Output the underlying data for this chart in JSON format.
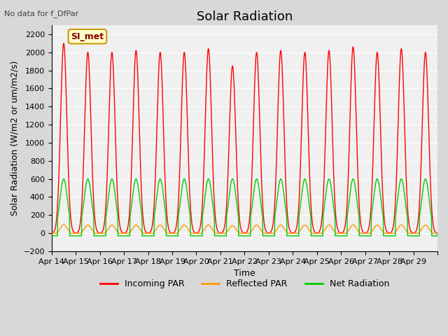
{
  "title": "Solar Radiation",
  "subtitle": "No data for f_DfPar",
  "ylabel": "Solar Radiation (W/m2 or um/m2/s)",
  "xlabel": "Time",
  "ylim": [
    -200,
    2300
  ],
  "yticks": [
    -200,
    0,
    200,
    400,
    600,
    800,
    1000,
    1200,
    1400,
    1600,
    1800,
    2000,
    2200
  ],
  "xtick_labels": [
    "Apr 14",
    "Apr 15",
    "Apr 16",
    "Apr 17",
    "Apr 18",
    "Apr 19",
    "Apr 20",
    "Apr 21",
    "Apr 22",
    "Apr 23",
    "Apr 24",
    "Apr 25",
    "Apr 26",
    "Apr 27",
    "Apr 28",
    "Apr 29"
  ],
  "legend_label": "SI_met",
  "legend_bg": "#ffffcc",
  "legend_border": "#cc9900",
  "line_colors": {
    "incoming": "#ff0000",
    "reflected": "#ff9900",
    "net": "#00cc00"
  },
  "line_labels": [
    "Incoming PAR",
    "Reflected PAR",
    "Net Radiation"
  ],
  "n_days": 16,
  "bg_color": "#d8d8d8",
  "plot_bg": "#f0f0f0",
  "title_fontsize": 13,
  "label_fontsize": 9,
  "tick_fontsize": 8,
  "peak_incoming": [
    2100,
    2000,
    2000,
    2020,
    2000,
    2000,
    2040,
    1850,
    2000,
    2020,
    2000,
    2020,
    2060,
    2000,
    2040,
    2000
  ]
}
